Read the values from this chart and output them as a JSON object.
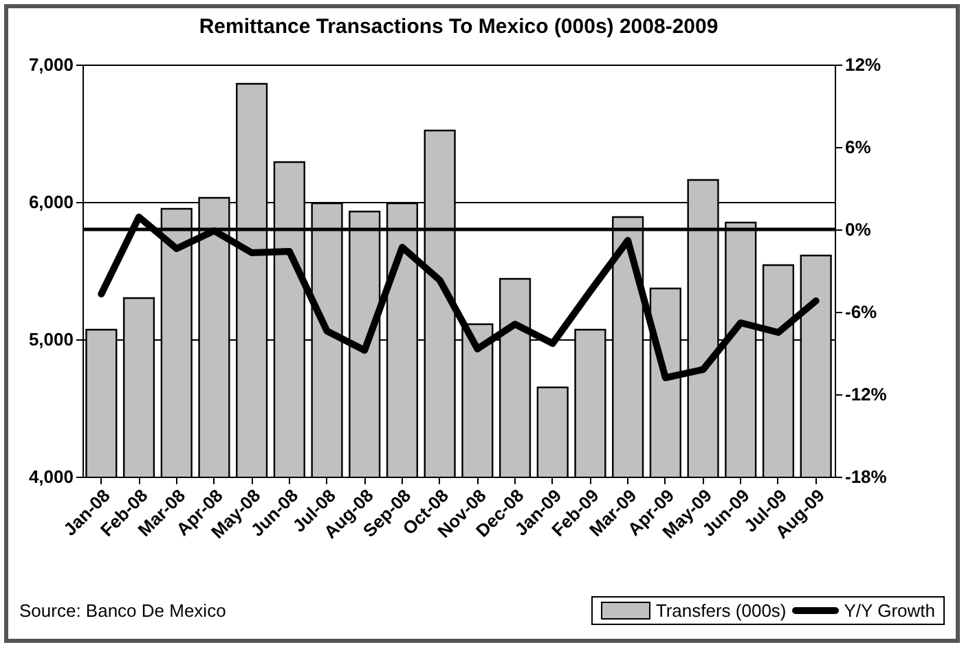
{
  "chart_data": {
    "type": "bar",
    "title": "Remittance Transactions To Mexico (000s) 2008-2009",
    "categories": [
      "Jan-08",
      "Feb-08",
      "Mar-08",
      "Apr-08",
      "May-08",
      "Jun-08",
      "Jul-08",
      "Aug-08",
      "Sep-08",
      "Oct-08",
      "Nov-08",
      "Dec-08",
      "Jan-09",
      "Feb-09",
      "Mar-09",
      "Apr-09",
      "May-09",
      "Jun-09",
      "Jul-09",
      "Aug-09"
    ],
    "series": [
      {
        "name": "Transfers (000s)",
        "color": "#c0c0c0",
        "values": [
          5070,
          5300,
          5950,
          6030,
          6860,
          6290,
          5990,
          5930,
          5990,
          6520,
          5110,
          5440,
          4650,
          5070,
          5890,
          5370,
          6160,
          5850,
          5540,
          5610
        ]
      },
      {
        "name": "Y/Y Growth",
        "type": "line",
        "axis": "y2",
        "color": "#000000",
        "values": [
          -4.7,
          0.9,
          -1.4,
          -0.1,
          -1.7,
          -1.6,
          -7.4,
          -8.8,
          -1.3,
          -3.7,
          -8.7,
          -6.9,
          -8.3,
          -4.5,
          -0.8,
          -10.8,
          -10.2,
          -6.8,
          -7.5,
          -5.2
        ]
      }
    ],
    "ylim": [
      4000,
      7000
    ],
    "yticks": [
      {
        "value": 4000,
        "label": "4,000"
      },
      {
        "value": 5000,
        "label": "5,000"
      },
      {
        "value": 6000,
        "label": "6,000"
      },
      {
        "value": 7000,
        "label": "7,000"
      }
    ],
    "y2lim": [
      -18,
      12
    ],
    "y2ticks": [
      {
        "value": -18,
        "label": "-18%"
      },
      {
        "value": -12,
        "label": "-12%"
      },
      {
        "value": -6,
        "label": "-6%"
      },
      {
        "value": 0,
        "label": "0%"
      },
      {
        "value": 6,
        "label": "6%"
      },
      {
        "value": 12,
        "label": "12%"
      }
    ],
    "ref_lines": [
      {
        "axis": "y2",
        "value": 0,
        "color": "#000000"
      }
    ],
    "grid": "y",
    "legend": "bottom",
    "marker": "none",
    "annotations": [
      "Source: Banco De Mexico"
    ]
  }
}
